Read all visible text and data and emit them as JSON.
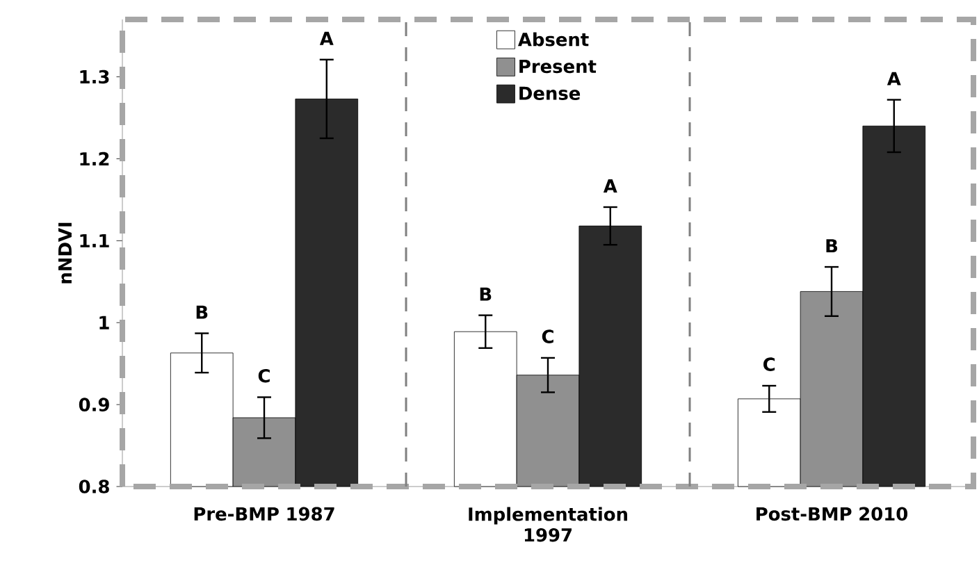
{
  "chart_data": {
    "type": "bar",
    "ylabel": "nNDVI",
    "categories": [
      "Pre-BMP 1987",
      "Implementation 1997",
      "Post-BMP 2010"
    ],
    "series": [
      {
        "name": "Absent",
        "color": "#ffffff",
        "values": [
          0.963,
          0.989,
          0.907
        ],
        "errors": [
          0.024,
          0.02,
          0.016
        ],
        "value_labels": [
          "B",
          "B",
          "C"
        ]
      },
      {
        "name": "Present",
        "color": "#909090",
        "values": [
          0.884,
          0.936,
          1.038
        ],
        "errors": [
          0.025,
          0.021,
          0.03
        ],
        "value_labels": [
          "C",
          "C",
          "B"
        ]
      },
      {
        "name": "Dense",
        "color": "#2b2b2b",
        "values": [
          1.273,
          1.118,
          1.24
        ],
        "errors": [
          0.048,
          0.023,
          0.032
        ],
        "value_labels": [
          "A",
          "A",
          "A"
        ]
      }
    ],
    "ylim": [
      0.8,
      1.37
    ],
    "yticks": [
      0.8,
      0.9,
      1,
      1.1,
      1.2,
      1.3
    ],
    "grid": false,
    "legend": "top"
  }
}
